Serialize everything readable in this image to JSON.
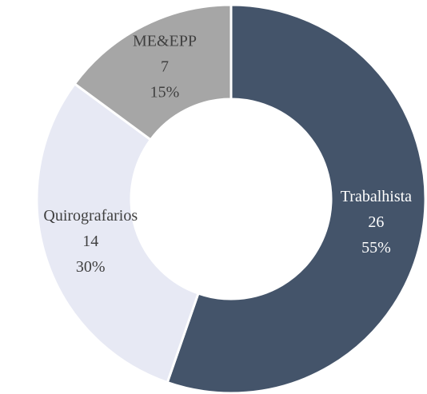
{
  "chart_data": {
    "type": "donut",
    "categories": [
      "Trabalhista",
      "Quirografarios",
      "ME&EPP"
    ],
    "values": [
      26,
      14,
      7
    ],
    "percentages": [
      55,
      30,
      15
    ],
    "percentage_labels": [
      "55%",
      "30%",
      "15%"
    ],
    "colors": [
      "#44546a",
      "#e7e9f4",
      "#a6a6a6"
    ],
    "label_colors": [
      "#ffffff",
      "#404040",
      "#404040"
    ]
  }
}
